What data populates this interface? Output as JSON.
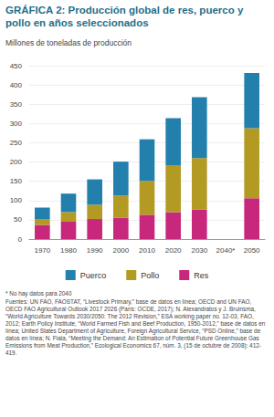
{
  "chart_data": {
    "type": "bar",
    "title": "GRÁFICA 2: Producción global de res, puerco y pollo en años seleccionados",
    "ylabel": "Millones de toneladas de producción",
    "categories": [
      "1970",
      "1980",
      "1990",
      "2000",
      "2010",
      "2020",
      "2030",
      "2040*",
      "2050"
    ],
    "series": [
      {
        "name": "Res",
        "color": "#c7287c",
        "values": [
          37,
          45,
          52,
          55,
          63,
          70,
          77,
          null,
          106
        ]
      },
      {
        "name": "Pollo",
        "color": "#b39a22",
        "values": [
          15,
          25,
          37,
          58,
          88,
          122,
          133,
          null,
          182
        ]
      },
      {
        "name": "Puerco",
        "color": "#2380ad",
        "values": [
          30,
          48,
          66,
          88,
          108,
          122,
          158,
          null,
          143
        ]
      }
    ],
    "stacked": true,
    "ylim": [
      0,
      450
    ],
    "yticks": [
      0,
      50,
      100,
      150,
      200,
      250,
      300,
      350,
      400,
      450
    ],
    "grid": true,
    "legend": "bottom",
    "footnotes": [
      "* No hay datos para 2040",
      "Fuentes: UN FAO, FAOSTAT, “Livestock Primary,” base de datos en línea; OECD and UN FAO, OECD FAO Agricultural Outlook 2017 2026 (París: OCDE, 2017); N. Alexandratos y J. Bruinsma, “World Agriculture Towards 2030/2050: The 2012 Revision,” ESA working paper no. 12-03, FAO, 2012; Earth Policy Institute, “World Farmed Fish and Beef Production, 1950-2012,” base de datos en línea; United States Department of Agriculture, Foreign Agricultural Service, “PSD Online,” base de datos en línea; N. Fiala, “Meeting the Demand: An Estimation of Potential Future Greenhouse Gas Emissions from Meat Production,” Ecological Economics 67, núm. 3, (15 de octubre de 2008): 412-419."
    ]
  }
}
